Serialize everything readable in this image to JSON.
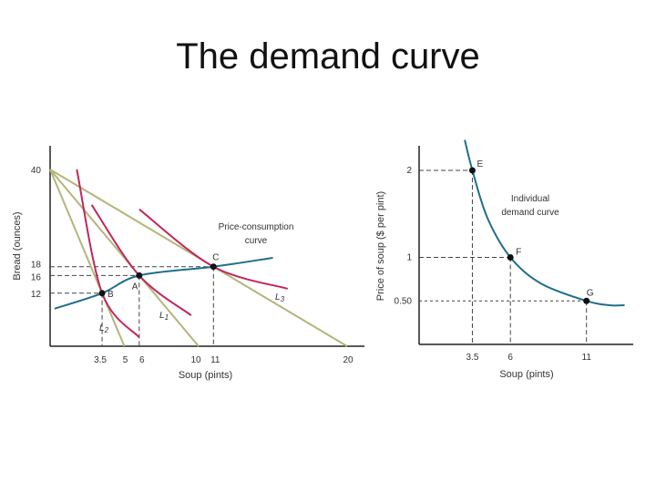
{
  "slide": {
    "title": "The demand curve"
  },
  "colors": {
    "budget_line": "#b5b57a",
    "indifference": "#c0285a",
    "curve": "#1f6e8a",
    "axis": "#222222",
    "dashed": "#444444"
  },
  "chart_data": [
    {
      "type": "line",
      "xlabel": "Soup (pints)",
      "ylabel": "Bread (ounces)",
      "xlim": [
        0,
        21
      ],
      "ylim": [
        0,
        44
      ],
      "x_ticks": [
        "3.5",
        "5",
        "6",
        "10",
        "11",
        "20"
      ],
      "y_ticks": [
        "12",
        "16",
        "18",
        "40"
      ],
      "budget_lines": [
        {
          "name": "L2",
          "x": [
            0,
            5
          ],
          "y": [
            40,
            0
          ]
        },
        {
          "name": "L1",
          "x": [
            0,
            10
          ],
          "y": [
            40,
            0
          ]
        },
        {
          "name": "L3",
          "x": [
            0,
            20
          ],
          "y": [
            40,
            0
          ]
        }
      ],
      "indifference_curves": [
        {
          "points": [
            [
              1.8,
              40
            ],
            [
              3.5,
              12
            ],
            [
              6,
              2
            ]
          ]
        },
        {
          "points": [
            [
              2.8,
              32
            ],
            [
              6,
              16
            ],
            [
              9.5,
              7
            ]
          ]
        },
        {
          "points": [
            [
              6,
              31
            ],
            [
              11,
              18
            ],
            [
              16,
              13
            ]
          ]
        }
      ],
      "price_consumption_curve": {
        "x": [
          0.3,
          3.5,
          6,
          11,
          15
        ],
        "y": [
          8.5,
          12,
          16,
          18,
          20
        ]
      },
      "points": [
        {
          "label": "A",
          "x": 6,
          "y": 16
        },
        {
          "label": "B",
          "x": 3.5,
          "y": 12
        },
        {
          "label": "C",
          "x": 11,
          "y": 18
        }
      ],
      "annotations": [
        "Price-consumption",
        "curve"
      ],
      "line_labels": {
        "L1": "L1",
        "L2": "L2",
        "L3": "L3"
      }
    },
    {
      "type": "line",
      "xlabel": "Soup (pints)",
      "ylabel": "Price of soup ($ per pint)",
      "xlim": [
        0,
        14
      ],
      "ylim": [
        0,
        2.3
      ],
      "x_ticks": [
        "3.5",
        "6",
        "11"
      ],
      "y_ticks": [
        "0.50",
        "1",
        "2"
      ],
      "demand_curve": {
        "x": [
          3.0,
          3.5,
          4.5,
          6,
          8,
          11,
          12.5,
          13.5
        ],
        "y": [
          2.35,
          2.0,
          1.45,
          1.0,
          0.7,
          0.5,
          0.45,
          0.45
        ]
      },
      "points": [
        {
          "label": "E",
          "x": 3.5,
          "y": 2.0
        },
        {
          "label": "F",
          "x": 6,
          "y": 1.0
        },
        {
          "label": "G",
          "x": 11,
          "y": 0.5
        }
      ],
      "annotations": [
        "Individual",
        "demand curve"
      ]
    }
  ]
}
